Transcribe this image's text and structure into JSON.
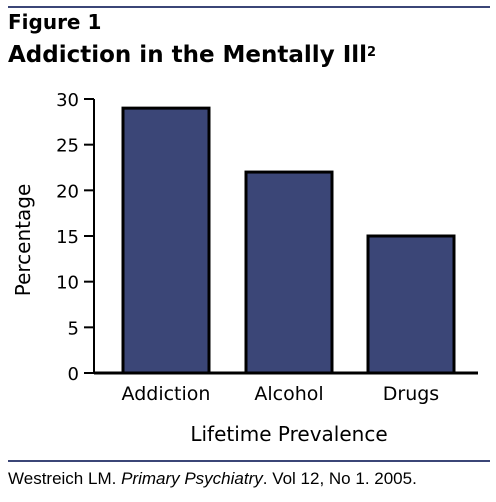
{
  "figure_label": "Figure 1",
  "title": "Addiction in the Mentally Ill",
  "title_superscript": "2",
  "citation": {
    "author": "Westreich LM.",
    "journal": "Primary Psychiatry",
    "details": ". Vol 12, No 1. 2005."
  },
  "colors": {
    "bar_fill": "#3b4677",
    "bar_stroke": "#000000",
    "rule": "#3b4677"
  },
  "chart_data": {
    "type": "bar",
    "categories": [
      "Addiction",
      "Alcohol",
      "Drugs"
    ],
    "values": [
      29,
      22,
      15
    ],
    "xlabel": "Lifetime Prevalence",
    "ylabel": "Percentage",
    "ylim": [
      0,
      30
    ],
    "yticks": [
      0,
      5,
      10,
      15,
      20,
      25,
      30
    ],
    "grid": false,
    "legend": "none"
  }
}
